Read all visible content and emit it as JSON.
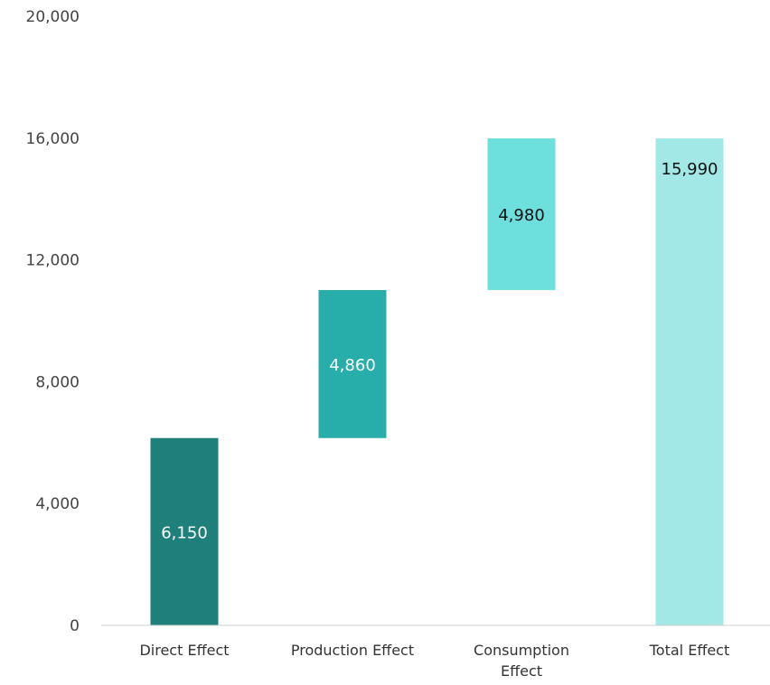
{
  "chart_data": {
    "type": "bar",
    "subtype": "waterfall",
    "title": "",
    "xlabel": "",
    "ylabel": "",
    "ylim": [
      0,
      20000
    ],
    "yticks": [
      0,
      4000,
      8000,
      12000,
      16000,
      20000
    ],
    "ytick_labels": [
      "0",
      "4,000",
      "8,000",
      "12,000",
      "16,000",
      "20,000"
    ],
    "grid": false,
    "legend": "none",
    "categories": [
      "Direct Effect",
      "Production Effect",
      "Consumption Effect",
      "Total Effect"
    ],
    "category_lines": [
      [
        "Direct Effect"
      ],
      [
        "Production Effect"
      ],
      [
        "Consumption",
        "Effect"
      ],
      [
        "Total Effect"
      ]
    ],
    "values": [
      6150,
      4860,
      4980,
      15990
    ],
    "bases": [
      0,
      6150,
      11010,
      0
    ],
    "value_labels": [
      "6,150",
      "4,860",
      "4,980",
      "15,990"
    ],
    "colors": [
      "#1e7f7b",
      "#27aeaa",
      "#6ddfdc",
      "#a1e8e6"
    ],
    "label_colors": [
      "#ffffff",
      "#ffffff",
      "#111111",
      "#111111"
    ]
  }
}
